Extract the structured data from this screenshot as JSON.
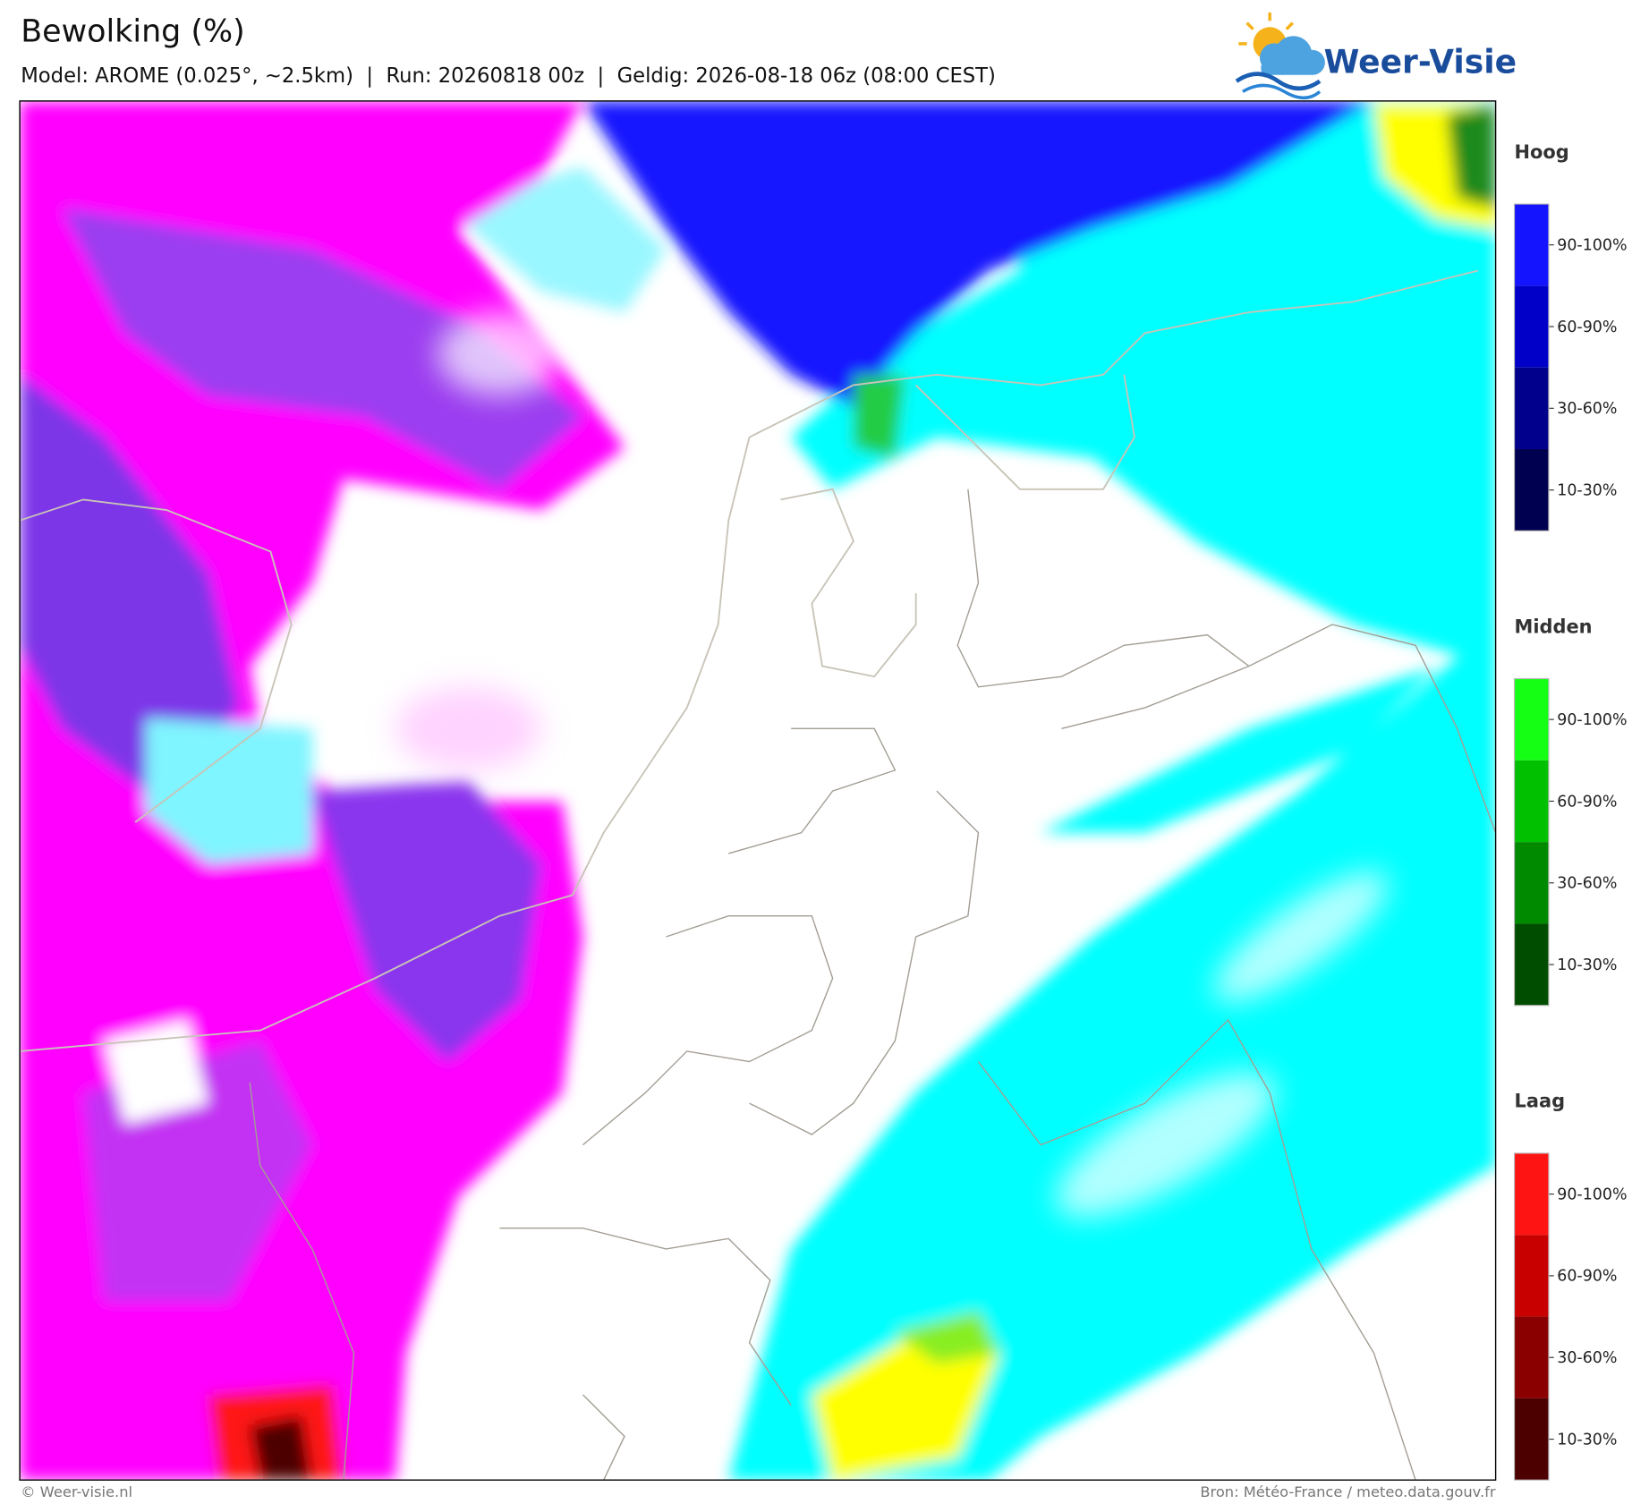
{
  "header": {
    "title": "Bewolking (%)",
    "subtitle": "Model: AROME (0.025°, ~2.5km)  |  Run: 20260818 00z  |  Geldig: 2026-08-18 06z (08:00 CEST)"
  },
  "logo": {
    "text": "Weer-Visie"
  },
  "legend": [
    {
      "title": "Hoog",
      "labels": [
        "90-100%",
        "60-90%",
        "30-60%",
        "10-30%"
      ],
      "colors": [
        "#1414ff",
        "#0000c8",
        "#00008c",
        "#000050"
      ]
    },
    {
      "title": "Midden",
      "labels": [
        "90-100%",
        "60-90%",
        "30-60%",
        "10-30%"
      ],
      "colors": [
        "#14ff14",
        "#00c000",
        "#008a00",
        "#004d00"
      ]
    },
    {
      "title": "Laag",
      "labels": [
        "90-100%",
        "60-90%",
        "30-60%",
        "10-30%"
      ],
      "colors": [
        "#ff1414",
        "#c80000",
        "#8a0000",
        "#4d0000"
      ]
    }
  ],
  "footer": {
    "left": "© Weer-visie.nl",
    "right": "Bron: Météo-France / meteo.data.gouv.fr"
  }
}
